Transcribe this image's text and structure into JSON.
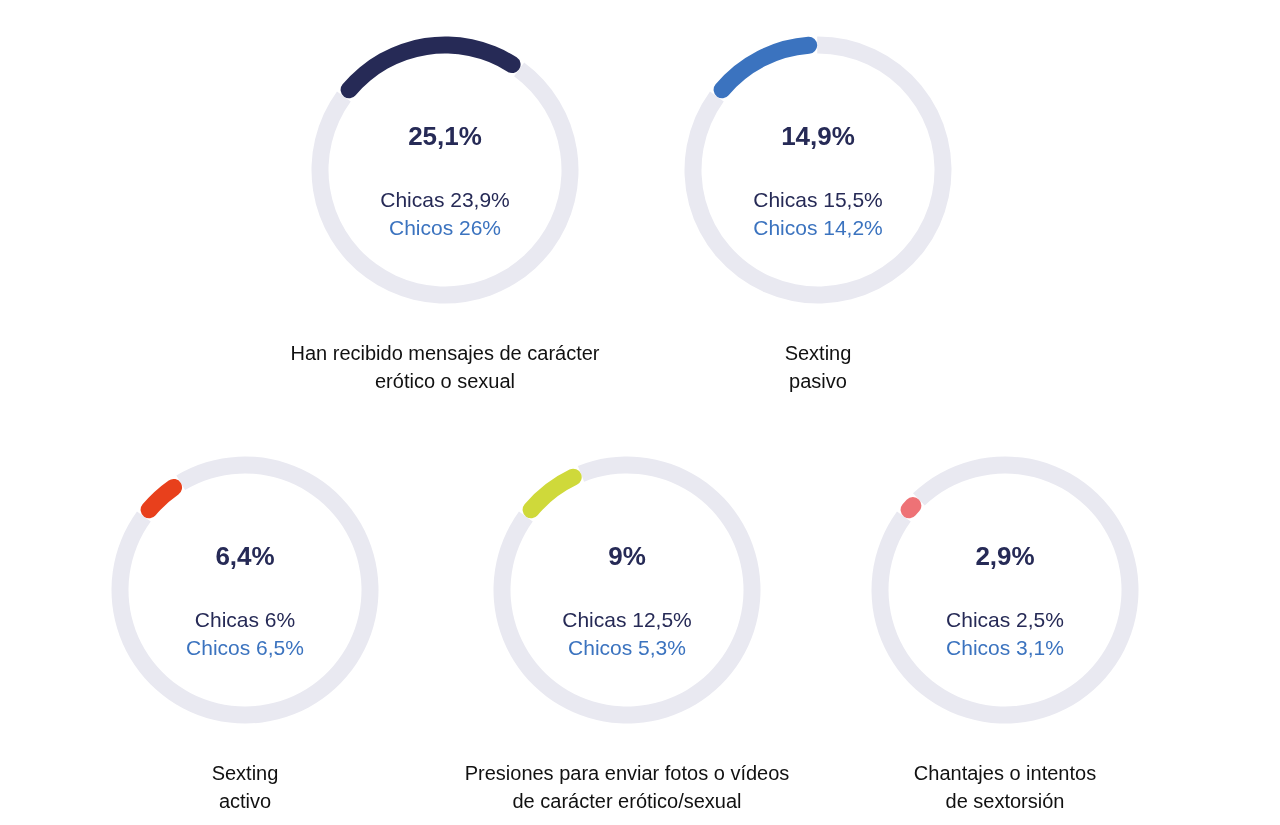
{
  "chart_data": [
    {
      "type": "donut",
      "title": "Han recibido mensajes de carácter\nerótico o sexual",
      "categories": [
        null,
        null
      ],
      "values": [
        25.1,
        74.9
      ],
      "colors": [
        "#262a56",
        "#e9e9f1"
      ],
      "annotations": [
        "25,1%",
        "Chicas 23,9%",
        "Chicos 26%"
      ]
    },
    {
      "type": "donut",
      "title": "Sexting\npasivo",
      "categories": [
        null,
        null
      ],
      "values": [
        14.9,
        85.1
      ],
      "colors": [
        "#3b73bf",
        "#e9e9f1"
      ],
      "annotations": [
        "14,9%",
        "Chicas 15,5%",
        "Chicos 14,2%"
      ]
    },
    {
      "type": "donut",
      "title": "Sexting\nactivo",
      "categories": [
        null,
        null
      ],
      "values": [
        6.4,
        93.6
      ],
      "colors": [
        "#e8401c",
        "#e9e9f1"
      ],
      "annotations": [
        "6,4%",
        "Chicas 6%",
        "Chicos 6,5%"
      ]
    },
    {
      "type": "donut",
      "title": "Presiones para enviar fotos o vídeos\nde carácter erótico/sexual",
      "categories": [
        null,
        null
      ],
      "values": [
        9,
        91
      ],
      "colors": [
        "#cfd93a",
        "#e9e9f1"
      ],
      "annotations": [
        "9%",
        "Chicas 12,5%",
        "Chicos 5,3%"
      ]
    },
    {
      "type": "donut",
      "title": "Chantajes o intentos\nde sextorsión",
      "categories": [
        null,
        null
      ],
      "values": [
        2.9,
        97.1
      ],
      "colors": [
        "#ee7276",
        "#e9e9f1"
      ],
      "annotations": [
        "2,9%",
        "Chicas 2,5%",
        "Chicos 3,1%"
      ]
    }
  ]
}
